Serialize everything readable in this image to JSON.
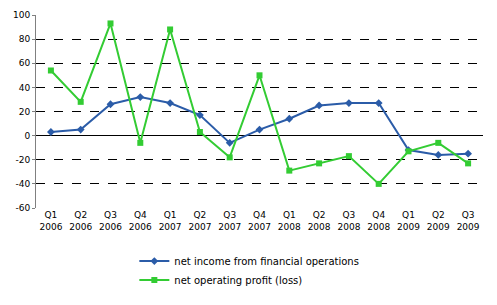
{
  "chart_data": {
    "type": "line",
    "categories": [
      "Q1 2006",
      "Q2 2006",
      "Q3 2006",
      "Q4 2006",
      "Q1 2007",
      "Q2 2007",
      "Q3 2007",
      "Q4 2007",
      "Q1 2008",
      "Q2 2008",
      "Q3 2008",
      "Q4 2008",
      "Q1 2009",
      "Q2 2009",
      "Q3 2009"
    ],
    "series": [
      {
        "name": "net income from financial operations",
        "color": "#2b5ca8",
        "marker": "diamond",
        "line_style": "solid",
        "values": [
          3,
          5,
          26,
          32,
          27,
          17,
          -6,
          5,
          14,
          25,
          27,
          27,
          -12,
          -16,
          -15
        ]
      },
      {
        "name": "net operating profit (loss)",
        "color": "#33cc33",
        "marker": "square",
        "line_style": "solid",
        "values": [
          54,
          28,
          93,
          -6,
          88,
          3,
          -18,
          50,
          -29,
          -23,
          -17,
          -40,
          -13,
          -6,
          -23
        ]
      }
    ],
    "ylim": [
      -60,
      100
    ],
    "yticks": [
      -60,
      -40,
      -20,
      0,
      20,
      40,
      60,
      80,
      100
    ],
    "grid": true,
    "legend": "bottom"
  }
}
